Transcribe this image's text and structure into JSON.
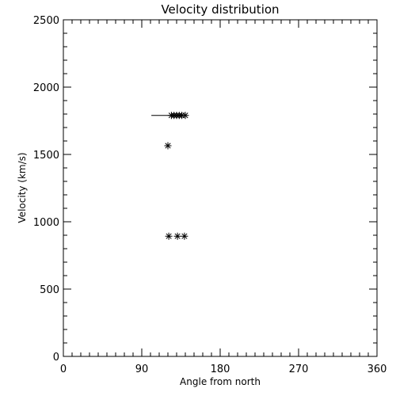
{
  "chart_data": {
    "type": "scatter",
    "title": "Velocity distribution",
    "xlabel": "Angle from north",
    "ylabel": "Velocity (km/s)",
    "xlim": [
      0,
      360
    ],
    "ylim": [
      0,
      2500
    ],
    "x_ticks": [
      0,
      90,
      180,
      270,
      360
    ],
    "x_tick_labels": [
      "0",
      "90",
      "180",
      "270",
      "360"
    ],
    "y_ticks": [
      0,
      500,
      1000,
      1500,
      2000,
      2500
    ],
    "y_tick_labels": [
      "0",
      "500",
      "1000",
      "1500",
      "2000",
      "2500"
    ],
    "x_minor_step": 10,
    "y_minor_step": 100,
    "grid": false,
    "marker": "asterisk",
    "points": [
      {
        "x": 124,
        "y": 1790
      },
      {
        "x": 127,
        "y": 1790
      },
      {
        "x": 130,
        "y": 1790
      },
      {
        "x": 133,
        "y": 1790
      },
      {
        "x": 136,
        "y": 1790
      },
      {
        "x": 140,
        "y": 1790
      },
      {
        "x": 120,
        "y": 1565
      },
      {
        "x": 121,
        "y": 893
      },
      {
        "x": 131,
        "y": 893
      },
      {
        "x": 139,
        "y": 893
      }
    ],
    "segments": [
      {
        "x": [
          101,
          140
        ],
        "y": [
          1790,
          1790
        ]
      }
    ]
  }
}
